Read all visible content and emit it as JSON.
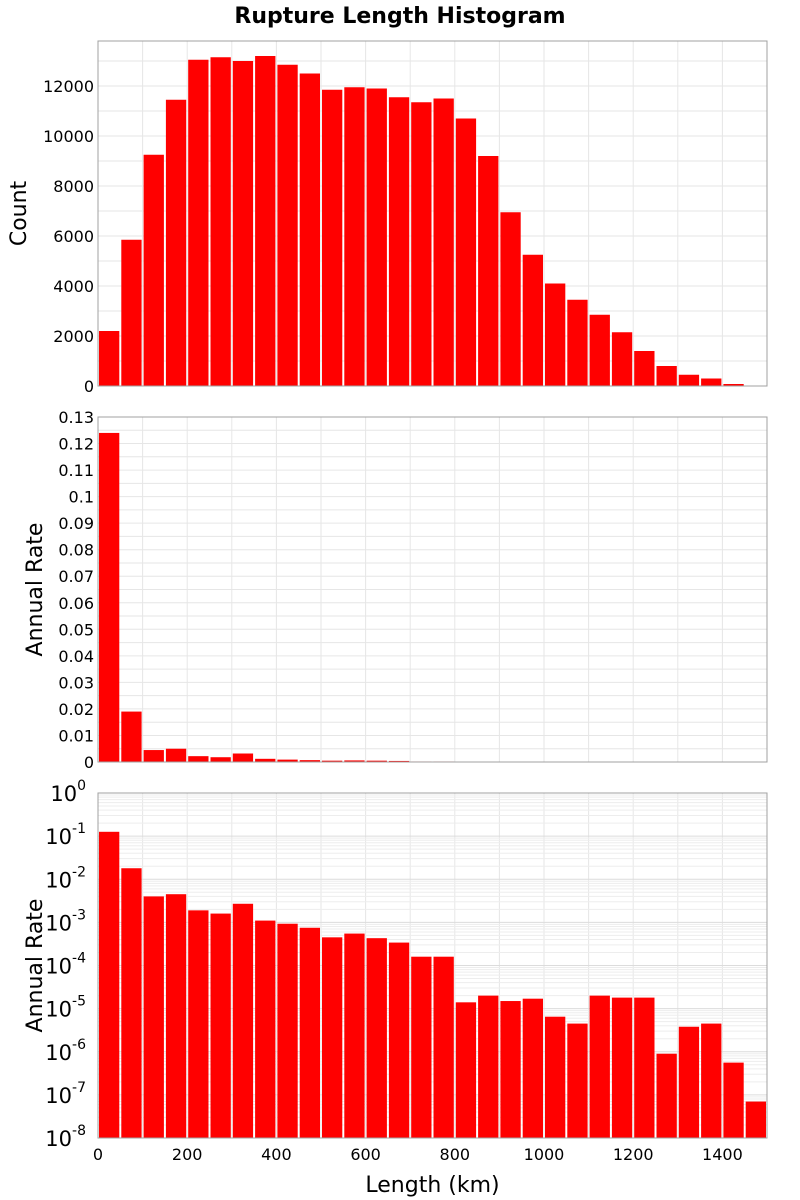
{
  "figure_title": "Rupture Length Histogram",
  "bar_color": "#ff0000",
  "chart_data": [
    {
      "type": "bar",
      "title": "",
      "xlabel": "",
      "ylabel": "Count",
      "scale": "linear",
      "xlim": [
        0,
        1500
      ],
      "ylim": [
        0,
        13800
      ],
      "yticks": [
        0,
        2000,
        4000,
        6000,
        8000,
        10000,
        12000
      ],
      "grid": true,
      "bin_width": 50,
      "x": [
        25,
        75,
        125,
        175,
        225,
        275,
        325,
        375,
        425,
        475,
        525,
        575,
        625,
        675,
        725,
        775,
        825,
        875,
        925,
        975,
        1025,
        1075,
        1125,
        1175,
        1225,
        1275,
        1325,
        1375,
        1425,
        1475
      ],
      "values": [
        2200,
        5850,
        9250,
        11450,
        13050,
        13150,
        13000,
        13200,
        12850,
        12500,
        11850,
        11950,
        11900,
        11550,
        11350,
        11500,
        10700,
        9200,
        6950,
        5250,
        4100,
        3450,
        2850,
        2150,
        1400,
        800,
        450,
        300,
        80,
        20
      ]
    },
    {
      "type": "bar",
      "title": "",
      "xlabel": "",
      "ylabel": "Annual Rate",
      "scale": "linear",
      "xlim": [
        0,
        1500
      ],
      "ylim": [
        0,
        0.13
      ],
      "yticks": [
        0,
        0.01,
        0.02,
        0.03,
        0.04,
        0.05,
        0.06,
        0.07,
        0.08,
        0.09,
        0.1,
        0.11,
        0.12,
        0.13
      ],
      "grid": true,
      "bin_width": 50,
      "x": [
        25,
        75,
        125,
        175,
        225,
        275,
        325,
        375,
        425,
        475,
        525,
        575,
        625,
        675,
        725,
        775,
        825,
        875,
        925,
        975,
        1025,
        1075,
        1125,
        1175,
        1225,
        1275,
        1325,
        1375,
        1425,
        1475
      ],
      "values": [
        0.124,
        0.019,
        0.0045,
        0.005,
        0.0022,
        0.0018,
        0.0032,
        0.0012,
        0.0009,
        0.0007,
        0.0005,
        0.0006,
        0.0005,
        0.0004,
        0.0002,
        0.0002,
        2e-05,
        2e-05,
        2e-05,
        2e-05,
        1e-05,
        5e-06,
        2e-05,
        2e-05,
        2e-05,
        1e-06,
        4e-06,
        5e-06,
        6e-07,
        7e-08
      ]
    },
    {
      "type": "bar",
      "title": "",
      "xlabel": "Length (km)",
      "ylabel": "Annual Rate",
      "scale": "log",
      "xlim": [
        0,
        1500
      ],
      "xticks": [
        0,
        200,
        400,
        600,
        800,
        1000,
        1200,
        1400
      ],
      "ylim": [
        1e-08,
        1
      ],
      "ytick_exponents": [
        "0",
        "-1",
        "-2",
        "-3",
        "-4",
        "-5",
        "-6",
        "-7",
        "-8"
      ],
      "ytick_base": "10",
      "grid": true,
      "bin_width": 50,
      "x": [
        25,
        75,
        125,
        175,
        225,
        275,
        325,
        375,
        425,
        475,
        525,
        575,
        625,
        675,
        725,
        775,
        825,
        875,
        925,
        975,
        1025,
        1075,
        1125,
        1175,
        1225,
        1275,
        1325,
        1375,
        1425,
        1475
      ],
      "values": [
        0.126,
        0.018,
        0.004,
        0.0045,
        0.0019,
        0.0016,
        0.0027,
        0.0011,
        0.00093,
        0.00075,
        0.00045,
        0.00055,
        0.00043,
        0.00034,
        0.00016,
        0.00016,
        1.4e-05,
        2e-05,
        1.5e-05,
        1.7e-05,
        6.5e-06,
        4.5e-06,
        2e-05,
        1.8e-05,
        1.8e-05,
        9e-07,
        3.8e-06,
        4.5e-06,
        5.6e-07,
        7e-08
      ]
    }
  ]
}
